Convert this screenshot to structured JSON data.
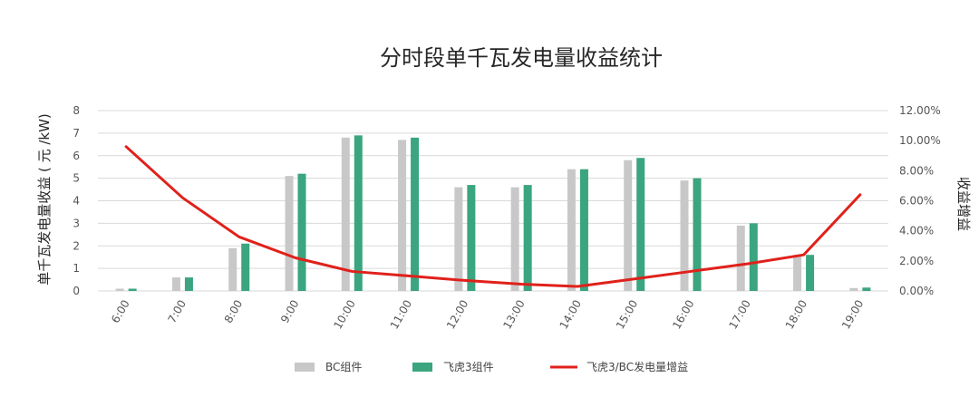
{
  "chart_data": {
    "type": "bar",
    "title": "分时段单千瓦发电量收益统计",
    "ylabel": "单千瓦发电量收益 ( 元 /kW)",
    "y2label": "收益增益",
    "ylim": [
      0,
      8
    ],
    "y2lim": [
      0,
      12
    ],
    "yticks": [
      "0",
      "1",
      "2",
      "3",
      "4",
      "5",
      "6",
      "7",
      "8"
    ],
    "y2ticks": [
      "0.00%",
      "2.00%",
      "4.00%",
      "6.00%",
      "8.00%",
      "10.00%",
      "12.00%"
    ],
    "grid": true,
    "legend_position": "bottom",
    "categories": [
      "6:00",
      "7:00",
      "8:00",
      "9:00",
      "10:00",
      "11:00",
      "12:00",
      "13:00",
      "14:00",
      "15:00",
      "16:00",
      "17:00",
      "18:00",
      "19:00"
    ],
    "series": [
      {
        "name": "BC组件",
        "type": "bar",
        "axis": "left",
        "color": "#c8c8c8",
        "values": [
          0.1,
          0.6,
          1.9,
          5.1,
          6.8,
          6.7,
          4.6,
          4.6,
          5.4,
          5.8,
          4.9,
          2.9,
          1.6,
          0.13
        ]
      },
      {
        "name": "飞虎3组件",
        "type": "bar",
        "axis": "left",
        "color": "#3aa57e",
        "values": [
          0.1,
          0.6,
          2.1,
          5.2,
          6.9,
          6.8,
          4.7,
          4.7,
          5.4,
          5.9,
          5.0,
          3.0,
          1.6,
          0.15
        ]
      },
      {
        "name": "飞虎3/BC发电量增益",
        "type": "line",
        "axis": "right",
        "color": "#e0211b",
        "values": [
          9.6,
          6.2,
          3.6,
          2.2,
          1.3,
          1.0,
          0.7,
          0.45,
          0.3,
          0.8,
          1.3,
          1.8,
          2.4,
          6.4
        ]
      }
    ]
  }
}
